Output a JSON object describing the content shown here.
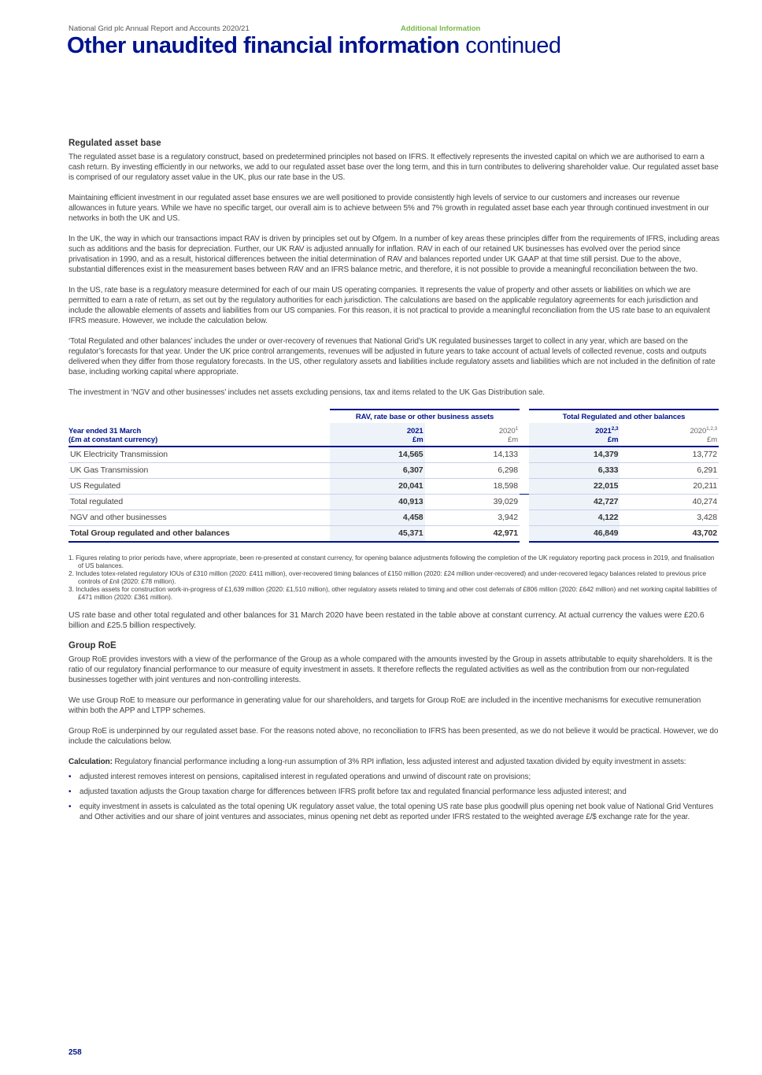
{
  "header": {
    "report": "National Grid plc Annual Report and Accounts 2020/21",
    "section": "Additional Information"
  },
  "title": {
    "main": "Other unaudited financial information",
    "suffix": " continued"
  },
  "rab": {
    "heading": "Regulated asset base",
    "paragraphs": [
      "The regulated asset base is a regulatory construct, based on predetermined principles not based on IFRS. It effectively represents the invested capital on which we are authorised to earn a cash return. By investing efficiently in our networks, we add to our regulated asset base over the long term, and this in turn contributes to delivering shareholder value. Our regulated asset base is comprised of our regulatory asset value in the UK, plus our rate base in the US.",
      "Maintaining efficient investment in our regulated asset base ensures we are well positioned to provide consistently high levels of service to our customers and increases our revenue allowances in future years. While we have no specific target, our overall aim is to achieve between 5% and 7% growth in regulated asset base each year through continued investment in our networks in both the UK and US.",
      "In the UK, the way in which our transactions impact RAV is driven by principles set out by Ofgem. In a number of key areas these principles differ from the requirements of IFRS, including areas such as additions and the basis for depreciation. Further, our UK RAV is adjusted annually for inflation. RAV in each of our retained UK businesses has evolved over the period since privatisation in 1990, and as a result, historical differences between the initial determination of RAV and balances reported under UK GAAP at that time still persist. Due to the above, substantial differences exist in the measurement bases between RAV and an IFRS balance metric, and therefore, it is not possible to provide a meaningful reconciliation between the two.",
      "In the US, rate base is a regulatory measure determined for each of our main US operating companies. It represents the value of property and other assets or liabilities on which we are permitted to earn a rate of return, as set out by the regulatory authorities for each jurisdiction. The calculations are based on the applicable regulatory agreements for each jurisdiction and include the allowable elements of assets and liabilities from our US companies. For this reason, it is not practical to provide a meaningful reconciliation from the US rate base to an equivalent IFRS measure. However, we include the calculation below.",
      "‘Total Regulated and other balances’ includes the under or over-recovery of revenues that National Grid’s UK regulated businesses target to collect in any year, which are based on the regulator’s forecasts for that year. Under the UK price control arrangements, revenues will be adjusted in future years to take account of actual levels of collected revenue, costs and outputs delivered when they differ from those regulatory forecasts. In the US, other regulatory assets and liabilities include regulatory assets and liabilities which are not included in the definition of rate base, including working capital where appropriate.",
      "The investment in ‘NGV and other businesses’ includes net assets excluding pensions, tax and items related to the UK Gas Distribution sale."
    ]
  },
  "table": {
    "group1": "RAV, rate base or other business assets",
    "group2": "Total Regulated and other balances",
    "row_header_1": "Year ended 31 March",
    "row_header_2": "(£m at constant currency)",
    "cols": [
      {
        "year": "2021",
        "sup": "",
        "unit": "£m"
      },
      {
        "year": "2020",
        "sup": "1",
        "unit": "£m"
      },
      {
        "year": "2021",
        "sup": "2,3",
        "unit": "£m"
      },
      {
        "year": "2020",
        "sup": "1,2,3",
        "unit": "£m"
      }
    ],
    "rows": [
      {
        "label": "UK Electricity Transmission",
        "values": [
          "14,565",
          "14,133",
          "14,379",
          "13,772"
        ]
      },
      {
        "label": "UK Gas Transmission",
        "values": [
          "6,307",
          "6,298",
          "6,333",
          "6,291"
        ]
      },
      {
        "label": "US Regulated",
        "values": [
          "20,041",
          "18,598",
          "22,015",
          "20,211"
        ]
      },
      {
        "label": "Total regulated",
        "values": [
          "40,913",
          "39,029",
          "42,727",
          "40,274"
        ]
      },
      {
        "label": "NGV and other businesses",
        "values": [
          "4,458",
          "3,942",
          "4,122",
          "3,428"
        ]
      },
      {
        "label": "Total Group regulated and other balances",
        "values": [
          "45,371",
          "42,971",
          "46,849",
          "43,702"
        ]
      }
    ]
  },
  "footnotes": [
    "1. Figures relating to prior periods have, where appropriate, been re-presented at constant currency, for opening balance adjustments following the completion of the UK regulatory reporting pack process in 2019, and finalisation of US balances.",
    "2. Includes totex-related regulatory IOUs of £310 million (2020: £411 million), over-recovered timing balances of £150 million (2020: £24 million under-recovered) and under-recovered legacy balances related to previous price controls of £nil (2020: £78 million).",
    "3. Includes assets for construction work-in-progress of £1,639 million (2020: £1,510 million), other regulatory assets related to timing and other cost deferrals of £806 million (2020: £642 million) and net working capital liabilities of £471 million (2020: £361 million)."
  ],
  "restated": "US rate base and other total regulated and other balances for 31 March 2020 have been restated in the table above at constant currency. At actual currency the values were £20.6 billion and £25.5 billion respectively.",
  "roe": {
    "heading": "Group RoE",
    "paragraphs": [
      "Group RoE provides investors with a view of the performance of the Group as a whole compared with the amounts invested by the Group in assets attributable to equity shareholders. It is the ratio of our regulatory financial performance to our measure of equity investment in assets. It therefore reflects the regulated activities as well as the contribution from our non-regulated businesses together with joint ventures and non-controlling interests.",
      "We use Group RoE to measure our performance in generating value for our shareholders, and targets for Group RoE are included in the incentive mechanisms for executive remuneration within both the APP and LTPP schemes.",
      "Group RoE is underpinned by our regulated asset base. For the reasons noted above, no reconciliation to IFRS has been presented, as we do not believe it would be practical. However, we do include the calculations below."
    ],
    "calc_label": "Calculation:",
    "calc_text": " Regulatory financial performance including a long-run assumption of 3% RPI inflation, less adjusted interest and adjusted taxation divided by equity investment in assets:",
    "bullets": [
      "adjusted interest removes interest on pensions, capitalised interest in regulated operations and unwind of discount rate on provisions;",
      "adjusted taxation adjusts the Group taxation charge for differences between IFRS profit before tax and regulated financial performance less adjusted interest; and",
      "equity investment in assets is calculated as the total opening UK regulatory asset value, the total opening US rate base plus goodwill plus opening net book value of National Grid Ventures and Other activities and our share of joint ventures and associates, minus opening net debt as reported under IFRS restated to the weighted average £/$ exchange rate for the year."
    ]
  },
  "page_number": "258",
  "colors": {
    "brand_blue": "#00148c",
    "section_green": "#7ab648"
  }
}
